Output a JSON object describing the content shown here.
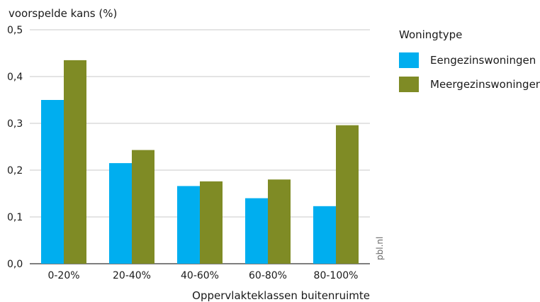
{
  "chart_data": {
    "type": "bar",
    "ylabel": "voorspelde kans (%)",
    "xlabel": "Oppervlakteklassen buitenruimte",
    "categories": [
      "0-20%",
      "20-40%",
      "40-60%",
      "60-80%",
      "80-100%"
    ],
    "series": [
      {
        "name": "Eengezinswoningen",
        "color": "#00aeef",
        "values": [
          0.35,
          0.215,
          0.166,
          0.14,
          0.123
        ]
      },
      {
        "name": "Meergezinswoningen",
        "color": "#7f8b25",
        "values": [
          0.435,
          0.243,
          0.176,
          0.18,
          0.296
        ]
      }
    ],
    "ylim": [
      0,
      0.5
    ],
    "yticks": [
      0,
      0.1,
      0.2,
      0.3,
      0.4,
      0.5
    ],
    "ytick_labels": [
      "0,0",
      "0,1",
      "0,2",
      "0,3",
      "0,4",
      "0,5"
    ],
    "grid": true,
    "legend_title": "Woningtype",
    "legend_position": "right",
    "source": "pbl.nl"
  }
}
